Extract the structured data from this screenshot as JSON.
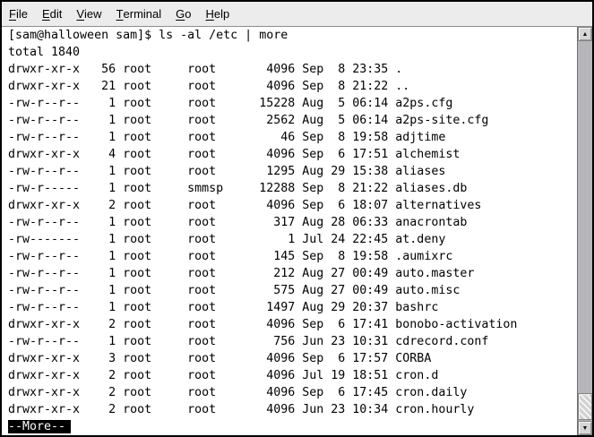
{
  "menu": {
    "items": [
      {
        "mnemonic": "F",
        "rest": "ile"
      },
      {
        "mnemonic": "E",
        "rest": "dit"
      },
      {
        "mnemonic": "V",
        "rest": "iew"
      },
      {
        "mnemonic": "T",
        "rest": "erminal"
      },
      {
        "mnemonic": "G",
        "rest": "o"
      },
      {
        "mnemonic": "H",
        "rest": "elp"
      }
    ]
  },
  "terminal": {
    "prompt_line": "[sam@halloween sam]$ ls -al /etc | more",
    "total_line": "total 1840",
    "files": [
      {
        "perms": "drwxr-xr-x",
        "links": "56",
        "owner": "root",
        "group": "root",
        "size": "4096",
        "month": "Sep",
        "day": "8",
        "time": "23:35",
        "name": "."
      },
      {
        "perms": "drwxr-xr-x",
        "links": "21",
        "owner": "root",
        "group": "root",
        "size": "4096",
        "month": "Sep",
        "day": "8",
        "time": "21:22",
        "name": ".."
      },
      {
        "perms": "-rw-r--r--",
        "links": "1",
        "owner": "root",
        "group": "root",
        "size": "15228",
        "month": "Aug",
        "day": "5",
        "time": "06:14",
        "name": "a2ps.cfg"
      },
      {
        "perms": "-rw-r--r--",
        "links": "1",
        "owner": "root",
        "group": "root",
        "size": "2562",
        "month": "Aug",
        "day": "5",
        "time": "06:14",
        "name": "a2ps-site.cfg"
      },
      {
        "perms": "-rw-r--r--",
        "links": "1",
        "owner": "root",
        "group": "root",
        "size": "46",
        "month": "Sep",
        "day": "8",
        "time": "19:58",
        "name": "adjtime"
      },
      {
        "perms": "drwxr-xr-x",
        "links": "4",
        "owner": "root",
        "group": "root",
        "size": "4096",
        "month": "Sep",
        "day": "6",
        "time": "17:51",
        "name": "alchemist"
      },
      {
        "perms": "-rw-r--r--",
        "links": "1",
        "owner": "root",
        "group": "root",
        "size": "1295",
        "month": "Aug",
        "day": "29",
        "time": "15:38",
        "name": "aliases"
      },
      {
        "perms": "-rw-r-----",
        "links": "1",
        "owner": "root",
        "group": "smmsp",
        "size": "12288",
        "month": "Sep",
        "day": "8",
        "time": "21:22",
        "name": "aliases.db"
      },
      {
        "perms": "drwxr-xr-x",
        "links": "2",
        "owner": "root",
        "group": "root",
        "size": "4096",
        "month": "Sep",
        "day": "6",
        "time": "18:07",
        "name": "alternatives"
      },
      {
        "perms": "-rw-r--r--",
        "links": "1",
        "owner": "root",
        "group": "root",
        "size": "317",
        "month": "Aug",
        "day": "28",
        "time": "06:33",
        "name": "anacrontab"
      },
      {
        "perms": "-rw-------",
        "links": "1",
        "owner": "root",
        "group": "root",
        "size": "1",
        "month": "Jul",
        "day": "24",
        "time": "22:45",
        "name": "at.deny"
      },
      {
        "perms": "-rw-r--r--",
        "links": "1",
        "owner": "root",
        "group": "root",
        "size": "145",
        "month": "Sep",
        "day": "8",
        "time": "19:58",
        "name": ".aumixrc"
      },
      {
        "perms": "-rw-r--r--",
        "links": "1",
        "owner": "root",
        "group": "root",
        "size": "212",
        "month": "Aug",
        "day": "27",
        "time": "00:49",
        "name": "auto.master"
      },
      {
        "perms": "-rw-r--r--",
        "links": "1",
        "owner": "root",
        "group": "root",
        "size": "575",
        "month": "Aug",
        "day": "27",
        "time": "00:49",
        "name": "auto.misc"
      },
      {
        "perms": "-rw-r--r--",
        "links": "1",
        "owner": "root",
        "group": "root",
        "size": "1497",
        "month": "Aug",
        "day": "29",
        "time": "20:37",
        "name": "bashrc"
      },
      {
        "perms": "drwxr-xr-x",
        "links": "2",
        "owner": "root",
        "group": "root",
        "size": "4096",
        "month": "Sep",
        "day": "6",
        "time": "17:41",
        "name": "bonobo-activation"
      },
      {
        "perms": "-rw-r--r--",
        "links": "1",
        "owner": "root",
        "group": "root",
        "size": "756",
        "month": "Jun",
        "day": "23",
        "time": "10:31",
        "name": "cdrecord.conf"
      },
      {
        "perms": "drwxr-xr-x",
        "links": "3",
        "owner": "root",
        "group": "root",
        "size": "4096",
        "month": "Sep",
        "day": "6",
        "time": "17:57",
        "name": "CORBA"
      },
      {
        "perms": "drwxr-xr-x",
        "links": "2",
        "owner": "root",
        "group": "root",
        "size": "4096",
        "month": "Jul",
        "day": "19",
        "time": "18:51",
        "name": "cron.d"
      },
      {
        "perms": "drwxr-xr-x",
        "links": "2",
        "owner": "root",
        "group": "root",
        "size": "4096",
        "month": "Sep",
        "day": "6",
        "time": "17:45",
        "name": "cron.daily"
      },
      {
        "perms": "drwxr-xr-x",
        "links": "2",
        "owner": "root",
        "group": "root",
        "size": "4096",
        "month": "Jun",
        "day": "23",
        "time": "10:34",
        "name": "cron.hourly"
      }
    ],
    "more_label": "--More--"
  },
  "icons": {
    "scroll_up_arrow": "▲",
    "scroll_down_arrow": "▼"
  },
  "colors": {
    "menubar_bg": "#ececec",
    "terminal_bg": "#ffffff",
    "terminal_fg": "#000000",
    "reverse_bg": "#000000",
    "reverse_fg": "#ffffff",
    "scrollbar_trough": "#b6b6ba",
    "scrollbar_button": "#d6d6d6",
    "window_border": "#000000"
  }
}
